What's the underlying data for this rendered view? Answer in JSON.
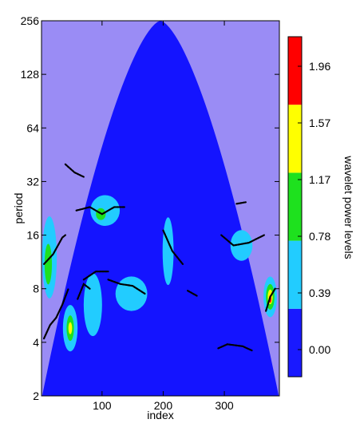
{
  "chart_data": {
    "type": "heatmap",
    "xlabel": "index",
    "ylabel": "period",
    "colorbar_label": "wavelet power levels",
    "x_ticks": [
      100,
      200,
      300
    ],
    "x_tick_labels": [
      "100",
      "200",
      "300"
    ],
    "y_ticks": [
      2,
      4,
      8,
      16,
      32,
      64,
      128,
      256
    ],
    "y_tick_labels": [
      "2",
      "4",
      "8",
      "16",
      "32",
      "64",
      "128",
      "256"
    ],
    "xlim": [
      1,
      390
    ],
    "ylim": [
      2,
      256
    ],
    "y_scale": "log2",
    "colorbar_levels": [
      0.0,
      0.39,
      0.78,
      1.17,
      1.57,
      1.96
    ],
    "colorbar_tick_labels": [
      "0.00",
      "0.39",
      "0.78",
      "1.17",
      "1.57",
      "1.96"
    ],
    "colorbar_colors": [
      "#1919ff",
      "#22ccff",
      "#1ee11e",
      "#ffff00",
      "#ff0000"
    ],
    "colors": {
      "background": "#1414ff",
      "cone_of_influence": "#9a8cf5",
      "ridge": "#000000"
    },
    "regions": [
      {
        "level": 1,
        "x": 14,
        "period": 12,
        "x_halfwidth": 12,
        "period_ratio": 1.7
      },
      {
        "level": 1,
        "x": 48,
        "period": 4.8,
        "x_halfwidth": 12,
        "period_ratio": 1.35
      },
      {
        "level": 1,
        "x": 85,
        "period": 6.5,
        "x_halfwidth": 15,
        "period_ratio": 1.5
      },
      {
        "level": 1,
        "x": 105,
        "period": 22,
        "x_halfwidth": 24,
        "period_ratio": 1.22
      },
      {
        "level": 1,
        "x": 148,
        "period": 7.5,
        "x_halfwidth": 26,
        "period_ratio": 1.25
      },
      {
        "level": 1,
        "x": 208,
        "period": 13,
        "x_halfwidth": 9,
        "period_ratio": 1.55
      },
      {
        "level": 1,
        "x": 328,
        "period": 14,
        "x_halfwidth": 18,
        "period_ratio": 1.22
      },
      {
        "level": 1,
        "x": 375,
        "period": 7.2,
        "x_halfwidth": 11,
        "period_ratio": 1.3
      },
      {
        "level": 2,
        "x": 12,
        "period": 11,
        "x_halfwidth": 6,
        "period_ratio": 1.3
      },
      {
        "level": 2,
        "x": 48,
        "period": 4.8,
        "x_halfwidth": 6,
        "period_ratio": 1.18
      },
      {
        "level": 2,
        "x": 98,
        "period": 21,
        "x_halfwidth": 8,
        "period_ratio": 1.08
      },
      {
        "level": 2,
        "x": 375,
        "period": 7.2,
        "x_halfwidth": 7,
        "period_ratio": 1.18
      },
      {
        "level": 3,
        "x": 48,
        "period": 4.8,
        "x_halfwidth": 3,
        "period_ratio": 1.08
      },
      {
        "level": 3,
        "x": 375,
        "period": 7.2,
        "x_halfwidth": 4,
        "period_ratio": 1.1
      },
      {
        "level": 4,
        "x": 375,
        "period": 7.0,
        "x_halfwidth": 2,
        "period_ratio": 1.05
      }
    ],
    "ridges": [
      [
        [
          40,
          40
        ],
        [
          55,
          36
        ],
        [
          70,
          34
        ]
      ],
      [
        [
          58,
          22
        ],
        [
          80,
          23
        ],
        [
          100,
          21
        ],
        [
          120,
          23
        ],
        [
          138,
          23
        ]
      ],
      [
        [
          5,
          11
        ],
        [
          20,
          12.5
        ],
        [
          35,
          15.5
        ],
        [
          40,
          16
        ]
      ],
      [
        [
          70,
          9
        ],
        [
          90,
          10
        ],
        [
          110,
          10
        ]
      ],
      [
        [
          110,
          9
        ],
        [
          130,
          8.5
        ],
        [
          150,
          8.3
        ],
        [
          170,
          7.5
        ]
      ],
      [
        [
          200,
          17
        ],
        [
          215,
          13
        ],
        [
          232,
          11
        ]
      ],
      [
        [
          295,
          16
        ],
        [
          315,
          14
        ],
        [
          340,
          14.5
        ],
        [
          365,
          16
        ]
      ],
      [
        [
          320,
          24
        ],
        [
          335,
          24.5
        ]
      ],
      [
        [
          5,
          4.2
        ],
        [
          15,
          5
        ],
        [
          25,
          5.5
        ],
        [
          35,
          6.5
        ],
        [
          45,
          8
        ]
      ],
      [
        [
          60,
          7
        ],
        [
          70,
          8.5
        ],
        [
          80,
          8
        ]
      ],
      [
        [
          368,
          6
        ],
        [
          375,
          7.2
        ],
        [
          383,
          8
        ]
      ],
      [
        [
          240,
          7.8
        ],
        [
          255,
          7.3
        ]
      ],
      [
        [
          290,
          3.7
        ],
        [
          305,
          3.9
        ],
        [
          330,
          3.8
        ],
        [
          345,
          3.6
        ]
      ]
    ]
  }
}
